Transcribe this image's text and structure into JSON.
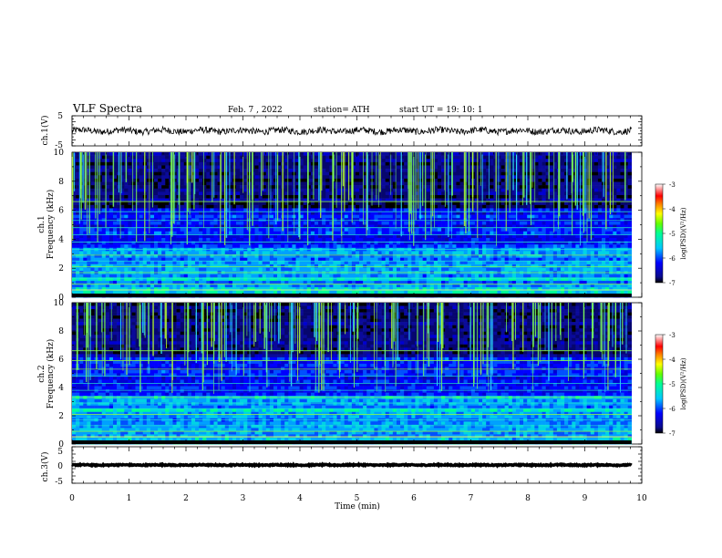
{
  "header": {
    "title": "VLF  Spectra",
    "date": "Feb. 7  , 2022",
    "station": "station= ATH",
    "start": "start  UT  =   19: 10: 1"
  },
  "colorbar": {
    "ticks": [
      "-3",
      "-4",
      "-5",
      "-6",
      "-7"
    ],
    "label": "log(PSD)(V²/Hz)",
    "colors": [
      "#000000",
      "#0a0a8c",
      "#0000ff",
      "#00c8ff",
      "#00ff96",
      "#64ff00",
      "#ffff00",
      "#ff8000",
      "#ff0000",
      "#ffffff"
    ]
  },
  "chart_data": [
    {
      "type": "line",
      "name": "ch1-waveform",
      "ylabel": "ch.1(V)",
      "ylim": [
        -5,
        5
      ],
      "yticks": [
        "5",
        "-5"
      ],
      "xlim": [
        0,
        10
      ],
      "approx_level": 0,
      "series_x_end": 9.82
    },
    {
      "type": "heatmap",
      "name": "ch1-spectrogram",
      "ylabel": "ch.1\nFrequency (kHz)",
      "ylabel_lines": [
        "ch.1",
        "Frequency (kHz)"
      ],
      "ylim": [
        0,
        10
      ],
      "yticks": [
        "0",
        "2",
        "4",
        "6",
        "8",
        "10"
      ],
      "xlim": [
        0,
        10
      ],
      "color_range": [
        -7,
        -3
      ]
    },
    {
      "type": "heatmap",
      "name": "ch2-spectrogram",
      "ylabel_lines": [
        "ch.2",
        "Frequency (kHz)"
      ],
      "ylim": [
        0,
        10
      ],
      "yticks": [
        "0",
        "2",
        "4",
        "6",
        "8",
        "10"
      ],
      "xlim": [
        0,
        10
      ],
      "color_range": [
        -7,
        -3
      ]
    },
    {
      "type": "line",
      "name": "ch3-waveform",
      "ylabel": "ch.3(V)",
      "ylim": [
        -5,
        5
      ],
      "yticks": [
        "5",
        "0",
        "-5"
      ],
      "xlim": [
        0,
        10
      ],
      "approx_level": 0,
      "series_x_end": 9.82
    }
  ],
  "xaxis": {
    "label": "Time  (min)",
    "ticks": [
      "0",
      "1",
      "2",
      "3",
      "4",
      "5",
      "6",
      "7",
      "8",
      "9",
      "10"
    ]
  }
}
